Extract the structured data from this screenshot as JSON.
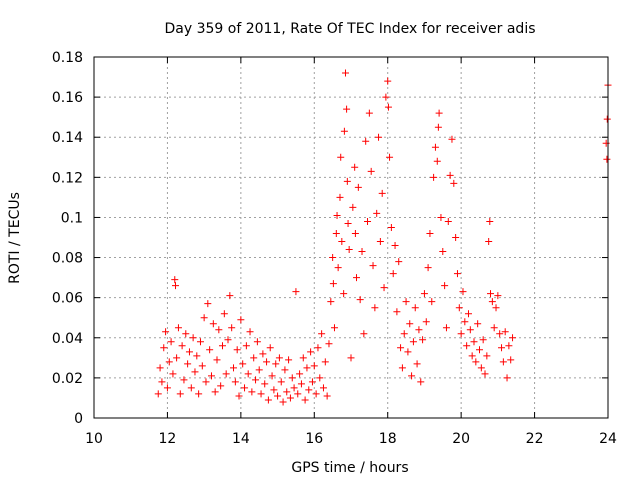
{
  "chart_data": {
    "type": "scatter",
    "title": "Day 359 of 2011, Rate Of TEC Index for receiver adis",
    "xlabel": "GPS time / hours",
    "ylabel": "ROTI / TECUs",
    "xlim": [
      10,
      24
    ],
    "ylim": [
      0,
      0.18
    ],
    "xticks": [
      10,
      12,
      14,
      16,
      18,
      20,
      22,
      24
    ],
    "xtick_labels": [
      "10",
      "12",
      "14",
      "16",
      "18",
      "20",
      "22",
      "24"
    ],
    "yticks": [
      0,
      0.02,
      0.04,
      0.06,
      0.08,
      0.1,
      0.12,
      0.14,
      0.16,
      0.18
    ],
    "ytick_labels": [
      "0",
      "0.02",
      "0.04",
      "0.06",
      "0.08",
      "0.1",
      "0.12",
      "0.14",
      "0.16",
      "0.18"
    ],
    "grid": true,
    "marker": "+",
    "colors": {
      "points": "#ff0000",
      "grid": "#a0a0a0",
      "axes": "#000000"
    },
    "series": [
      {
        "values": [
          [
            11.75,
            0.012
          ],
          [
            11.8,
            0.025
          ],
          [
            11.85,
            0.018
          ],
          [
            11.9,
            0.035
          ],
          [
            11.95,
            0.043
          ],
          [
            12.0,
            0.015
          ],
          [
            12.05,
            0.028
          ],
          [
            12.1,
            0.038
          ],
          [
            12.15,
            0.022
          ],
          [
            12.2,
            0.069
          ],
          [
            12.22,
            0.066
          ],
          [
            12.25,
            0.03
          ],
          [
            12.3,
            0.045
          ],
          [
            12.35,
            0.012
          ],
          [
            12.4,
            0.036
          ],
          [
            12.45,
            0.019
          ],
          [
            12.5,
            0.042
          ],
          [
            12.55,
            0.027
          ],
          [
            12.6,
            0.033
          ],
          [
            12.65,
            0.015
          ],
          [
            12.7,
            0.04
          ],
          [
            12.75,
            0.023
          ],
          [
            12.8,
            0.031
          ],
          [
            12.85,
            0.012
          ],
          [
            12.9,
            0.038
          ],
          [
            12.95,
            0.026
          ],
          [
            13.0,
            0.05
          ],
          [
            13.05,
            0.018
          ],
          [
            13.1,
            0.057
          ],
          [
            13.15,
            0.034
          ],
          [
            13.2,
            0.021
          ],
          [
            13.25,
            0.047
          ],
          [
            13.3,
            0.013
          ],
          [
            13.35,
            0.029
          ],
          [
            13.4,
            0.044
          ],
          [
            13.45,
            0.016
          ],
          [
            13.5,
            0.036
          ],
          [
            13.55,
            0.052
          ],
          [
            13.6,
            0.022
          ],
          [
            13.65,
            0.039
          ],
          [
            13.7,
            0.061
          ],
          [
            13.75,
            0.045
          ],
          [
            13.8,
            0.025
          ],
          [
            13.85,
            0.018
          ],
          [
            13.9,
            0.034
          ],
          [
            13.95,
            0.011
          ],
          [
            14.0,
            0.049
          ],
          [
            14.05,
            0.027
          ],
          [
            14.1,
            0.015
          ],
          [
            14.15,
            0.036
          ],
          [
            14.2,
            0.022
          ],
          [
            14.25,
            0.043
          ],
          [
            14.3,
            0.013
          ],
          [
            14.35,
            0.03
          ],
          [
            14.4,
            0.019
          ],
          [
            14.45,
            0.038
          ],
          [
            14.5,
            0.024
          ],
          [
            14.55,
            0.012
          ],
          [
            14.6,
            0.032
          ],
          [
            14.65,
            0.017
          ],
          [
            14.7,
            0.028
          ],
          [
            14.75,
            0.009
          ],
          [
            14.8,
            0.035
          ],
          [
            14.85,
            0.021
          ],
          [
            14.9,
            0.014
          ],
          [
            14.95,
            0.027
          ],
          [
            15.0,
            0.011
          ],
          [
            15.05,
            0.03
          ],
          [
            15.1,
            0.018
          ],
          [
            15.15,
            0.008
          ],
          [
            15.2,
            0.024
          ],
          [
            15.25,
            0.013
          ],
          [
            15.3,
            0.029
          ],
          [
            15.35,
            0.01
          ],
          [
            15.4,
            0.02
          ],
          [
            15.45,
            0.015
          ],
          [
            15.5,
            0.063
          ],
          [
            15.55,
            0.012
          ],
          [
            15.6,
            0.022
          ],
          [
            15.65,
            0.017
          ],
          [
            15.7,
            0.03
          ],
          [
            15.75,
            0.009
          ],
          [
            15.8,
            0.025
          ],
          [
            15.85,
            0.014
          ],
          [
            15.9,
            0.033
          ],
          [
            15.95,
            0.018
          ],
          [
            16.0,
            0.026
          ],
          [
            16.05,
            0.012
          ],
          [
            16.1,
            0.035
          ],
          [
            16.15,
            0.02
          ],
          [
            16.2,
            0.042
          ],
          [
            16.25,
            0.015
          ],
          [
            16.3,
            0.028
          ],
          [
            16.35,
            0.011
          ],
          [
            16.4,
            0.037
          ],
          [
            16.45,
            0.058
          ],
          [
            16.5,
            0.08
          ],
          [
            16.52,
            0.067
          ],
          [
            16.55,
            0.045
          ],
          [
            16.6,
            0.092
          ],
          [
            16.62,
            0.101
          ],
          [
            16.65,
            0.075
          ],
          [
            16.7,
            0.11
          ],
          [
            16.72,
            0.13
          ],
          [
            16.75,
            0.088
          ],
          [
            16.8,
            0.062
          ],
          [
            16.82,
            0.143
          ],
          [
            16.85,
            0.172
          ],
          [
            16.88,
            0.154
          ],
          [
            16.9,
            0.118
          ],
          [
            16.92,
            0.097
          ],
          [
            16.95,
            0.084
          ],
          [
            17.0,
            0.03
          ],
          [
            17.05,
            0.105
          ],
          [
            17.1,
            0.125
          ],
          [
            17.12,
            0.092
          ],
          [
            17.15,
            0.07
          ],
          [
            17.2,
            0.115
          ],
          [
            17.25,
            0.059
          ],
          [
            17.3,
            0.083
          ],
          [
            17.35,
            0.042
          ],
          [
            17.4,
            0.138
          ],
          [
            17.45,
            0.098
          ],
          [
            17.5,
            0.152
          ],
          [
            17.55,
            0.123
          ],
          [
            17.6,
            0.076
          ],
          [
            17.65,
            0.055
          ],
          [
            17.7,
            0.102
          ],
          [
            17.75,
            0.14
          ],
          [
            17.8,
            0.088
          ],
          [
            17.85,
            0.112
          ],
          [
            17.9,
            0.065
          ],
          [
            17.95,
            0.16
          ],
          [
            18.0,
            0.168
          ],
          [
            18.02,
            0.155
          ],
          [
            18.05,
            0.13
          ],
          [
            18.1,
            0.095
          ],
          [
            18.15,
            0.072
          ],
          [
            18.2,
            0.086
          ],
          [
            18.25,
            0.053
          ],
          [
            18.3,
            0.078
          ],
          [
            18.35,
            0.035
          ],
          [
            18.4,
            0.025
          ],
          [
            18.45,
            0.042
          ],
          [
            18.5,
            0.058
          ],
          [
            18.55,
            0.033
          ],
          [
            18.6,
            0.047
          ],
          [
            18.65,
            0.021
          ],
          [
            18.7,
            0.038
          ],
          [
            18.75,
            0.055
          ],
          [
            18.8,
            0.027
          ],
          [
            18.85,
            0.044
          ],
          [
            18.9,
            0.018
          ],
          [
            18.95,
            0.039
          ],
          [
            19.0,
            0.062
          ],
          [
            19.05,
            0.048
          ],
          [
            19.1,
            0.075
          ],
          [
            19.15,
            0.092
          ],
          [
            19.2,
            0.058
          ],
          [
            19.25,
            0.12
          ],
          [
            19.3,
            0.135
          ],
          [
            19.35,
            0.128
          ],
          [
            19.38,
            0.145
          ],
          [
            19.4,
            0.152
          ],
          [
            19.45,
            0.1
          ],
          [
            19.5,
            0.083
          ],
          [
            19.55,
            0.066
          ],
          [
            19.6,
            0.045
          ],
          [
            19.65,
            0.098
          ],
          [
            19.7,
            0.121
          ],
          [
            19.75,
            0.139
          ],
          [
            19.8,
            0.117
          ],
          [
            19.85,
            0.09
          ],
          [
            19.9,
            0.072
          ],
          [
            19.95,
            0.055
          ],
          [
            20.0,
            0.042
          ],
          [
            20.05,
            0.063
          ],
          [
            20.1,
            0.048
          ],
          [
            20.15,
            0.036
          ],
          [
            20.2,
            0.052
          ],
          [
            20.25,
            0.044
          ],
          [
            20.3,
            0.031
          ],
          [
            20.35,
            0.038
          ],
          [
            20.4,
            0.028
          ],
          [
            20.45,
            0.047
          ],
          [
            20.5,
            0.034
          ],
          [
            20.55,
            0.025
          ],
          [
            20.6,
            0.039
          ],
          [
            20.65,
            0.022
          ],
          [
            20.7,
            0.031
          ],
          [
            20.75,
            0.088
          ],
          [
            20.78,
            0.098
          ],
          [
            20.8,
            0.062
          ],
          [
            20.85,
            0.058
          ],
          [
            20.9,
            0.045
          ],
          [
            20.95,
            0.055
          ],
          [
            21.0,
            0.061
          ],
          [
            21.05,
            0.042
          ],
          [
            21.1,
            0.035
          ],
          [
            21.15,
            0.028
          ],
          [
            21.2,
            0.043
          ],
          [
            21.25,
            0.02
          ],
          [
            21.3,
            0.036
          ],
          [
            21.35,
            0.029
          ],
          [
            21.4,
            0.04
          ],
          [
            23.95,
            0.137
          ],
          [
            23.97,
            0.129
          ],
          [
            23.98,
            0.149
          ],
          [
            24.0,
            0.166
          ]
        ]
      }
    ]
  }
}
